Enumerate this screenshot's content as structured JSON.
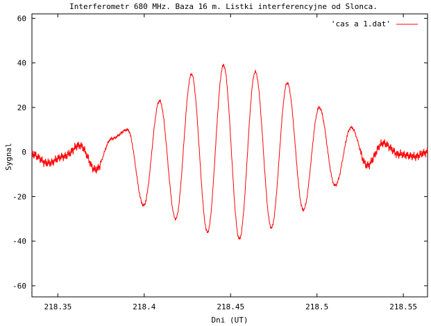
{
  "chart_data": {
    "type": "line",
    "title": "Interferometr 680 MHz. Baza 16 m. Listki interferencyjne od Slonca.",
    "xlabel": "Dni (UT)",
    "ylabel": "Sygnal",
    "xlim": [
      218.335,
      218.564
    ],
    "ylim": [
      -65,
      62
    ],
    "grid": true,
    "legend_placement": "top-right",
    "x_ticks": [
      {
        "value": 218.35,
        "label": "218.35"
      },
      {
        "value": 218.4,
        "label": "218.4"
      },
      {
        "value": 218.45,
        "label": "218.45"
      },
      {
        "value": 218.5,
        "label": "218.5"
      },
      {
        "value": 218.55,
        "label": "218.55"
      }
    ],
    "y_ticks": [
      {
        "value": 60,
        "label": "60"
      },
      {
        "value": 40,
        "label": "40"
      },
      {
        "value": 20,
        "label": "20"
      },
      {
        "value": 0,
        "label": "0"
      },
      {
        "value": -20,
        "label": "-20"
      },
      {
        "value": -40,
        "label": "-40"
      },
      {
        "value": -60,
        "label": "-60"
      }
    ],
    "series": [
      {
        "name": "'cas a 1.dat'",
        "color": "#ff0000",
        "x": [
          218.335,
          218.3442,
          218.3535,
          218.3627,
          218.372,
          218.3812,
          218.3904,
          218.3997,
          218.4089,
          218.4182,
          218.4274,
          218.4366,
          218.4459,
          218.4551,
          218.4643,
          218.4736,
          218.4828,
          218.4921,
          218.5013,
          218.5105,
          218.5198,
          218.529,
          218.5383,
          218.5475,
          218.5567,
          218.564
        ],
        "values": [
          -1,
          -5,
          -2,
          3,
          -8,
          6,
          10,
          -24,
          23,
          -30,
          35,
          -36,
          39,
          -39,
          36,
          -34,
          31,
          -26,
          20,
          -15,
          11,
          -6,
          4,
          -1,
          -2,
          0
        ]
      }
    ]
  },
  "legend": {
    "label": "'cas a 1.dat'"
  },
  "colors": {
    "background": "#ffffff",
    "axis": "#000000",
    "grid": "#a0a0a0",
    "series": "#ff0000"
  }
}
